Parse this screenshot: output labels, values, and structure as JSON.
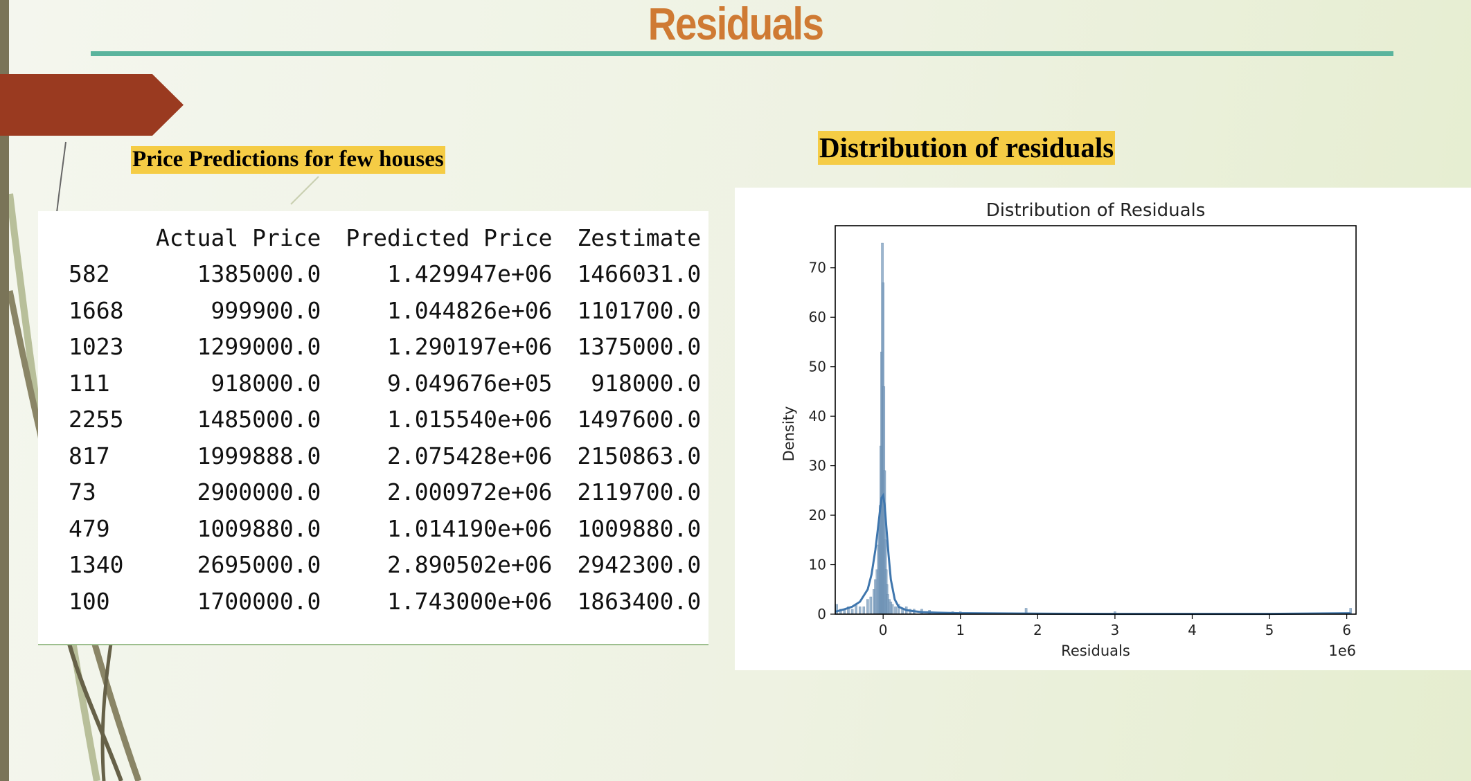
{
  "slide": {
    "title": "Residuals",
    "left_caption": "Price Predictions for few houses",
    "right_caption": "Distribution of residuals"
  },
  "colors": {
    "title": "#cf7a33",
    "rule": "#5ab49d",
    "arrow_tab": "#9a3a20",
    "caption_highlight": "#f5cc45",
    "bars": "#7a9cbd",
    "kde": "#3f76ad"
  },
  "table": {
    "columns": [
      "",
      "Actual Price",
      "Predicted Price",
      "Zestimate"
    ],
    "rows": [
      [
        "582",
        "1385000.0",
        "1.429947e+06",
        "1466031.0"
      ],
      [
        "1668",
        "999900.0",
        "1.044826e+06",
        "1101700.0"
      ],
      [
        "1023",
        "1299000.0",
        "1.290197e+06",
        "1375000.0"
      ],
      [
        "111",
        "918000.0",
        "9.049676e+05",
        "918000.0"
      ],
      [
        "2255",
        "1485000.0",
        "1.015540e+06",
        "1497600.0"
      ],
      [
        "817",
        "1999888.0",
        "2.075428e+06",
        "2150863.0"
      ],
      [
        "73",
        "2900000.0",
        "2.000972e+06",
        "2119700.0"
      ],
      [
        "479",
        "1009880.0",
        "1.014190e+06",
        "1009880.0"
      ],
      [
        "1340",
        "2695000.0",
        "2.890502e+06",
        "2942300.0"
      ],
      [
        "100",
        "1700000.0",
        "1.743000e+06",
        "1863400.0"
      ]
    ]
  },
  "chart_data": {
    "type": "bar",
    "title": "Distribution of Residuals",
    "xlabel": "Residuals",
    "ylabel": "Density",
    "x_offset_label": "1e6",
    "xlim": [
      -0.62,
      6.12
    ],
    "ylim": [
      0,
      78.5
    ],
    "xticks": [
      0,
      1,
      2,
      3,
      4,
      5,
      6
    ],
    "yticks": [
      0,
      10,
      20,
      30,
      40,
      50,
      60,
      70
    ],
    "grid": false,
    "histogram": {
      "bin_centers": [
        -0.6,
        -0.55,
        -0.5,
        -0.45,
        -0.4,
        -0.35,
        -0.3,
        -0.25,
        -0.2,
        -0.16,
        -0.12,
        -0.1,
        -0.08,
        -0.06,
        -0.05,
        -0.04,
        -0.03,
        -0.02,
        -0.01,
        0.0,
        0.01,
        0.02,
        0.03,
        0.04,
        0.05,
        0.06,
        0.08,
        0.1,
        0.12,
        0.16,
        0.2,
        0.25,
        0.3,
        0.35,
        0.4,
        0.5,
        0.6,
        0.9,
        1.0,
        1.85,
        3.0,
        6.05
      ],
      "densities": [
        2,
        1,
        1,
        1.5,
        1,
        2,
        1.5,
        1.5,
        3,
        3.5,
        5,
        7,
        9,
        14,
        18,
        22,
        34,
        53,
        75,
        67,
        46,
        29,
        15,
        9,
        6,
        4,
        3,
        2.5,
        2,
        1.5,
        2,
        1.2,
        1.5,
        1,
        1,
        1,
        0.8,
        0.5,
        0.5,
        1.2,
        0.5,
        1.2
      ]
    },
    "kde": {
      "x": [
        -0.62,
        -0.5,
        -0.4,
        -0.3,
        -0.2,
        -0.15,
        -0.1,
        -0.07,
        -0.04,
        -0.02,
        0.0,
        0.02,
        0.04,
        0.07,
        0.1,
        0.15,
        0.2,
        0.3,
        0.4,
        0.5,
        0.7,
        1.0,
        2.0,
        3.0,
        4.0,
        5.0,
        6.05
      ],
      "y": [
        0.5,
        1.0,
        1.5,
        2.5,
        5,
        8,
        13,
        17,
        21,
        23.5,
        24,
        22,
        18,
        12,
        7,
        3,
        1.5,
        0.8,
        0.6,
        0.4,
        0.3,
        0.2,
        0.1,
        0.05,
        0.05,
        0.05,
        0.2
      ]
    }
  }
}
